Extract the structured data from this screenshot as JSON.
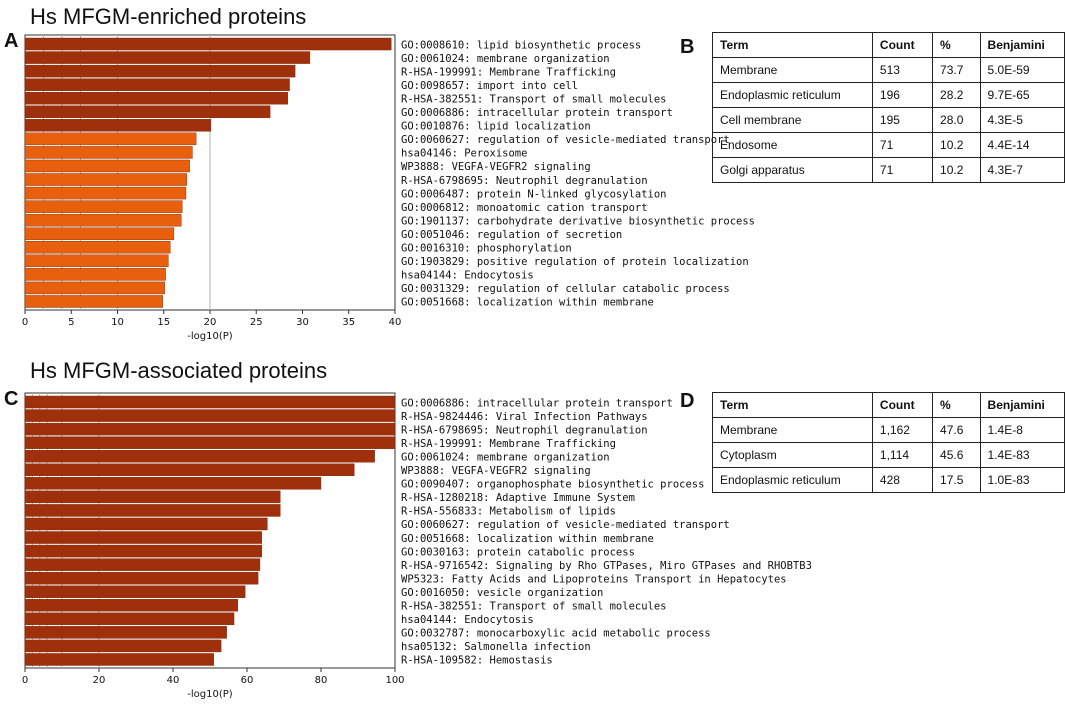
{
  "panels": {
    "a": {
      "letter": "A",
      "title": "Hs MFGM-enriched proteins"
    },
    "b": {
      "letter": "B"
    },
    "c": {
      "letter": "C",
      "title": "Hs MFGM-associated proteins"
    },
    "d": {
      "letter": "D"
    }
  },
  "chart_data": [
    {
      "type": "bar",
      "orientation": "horizontal",
      "title": "Hs MFGM-enriched proteins",
      "xlabel": "-log10(P)",
      "xlim": [
        0,
        40
      ],
      "xticks": [
        0,
        5,
        10,
        15,
        20,
        25,
        30,
        35,
        40
      ],
      "gridlines": [
        2,
        4,
        6,
        10,
        20
      ],
      "categories": [
        "GO:0008610: lipid biosynthetic process",
        "GO:0061024: membrane organization",
        "R-HSA-199991: Membrane Trafficking",
        "GO:0098657: import into cell",
        "R-HSA-382551: Transport of small molecules",
        "GO:0006886: intracellular protein transport",
        "GO:0010876: lipid localization",
        "GO:0060627: regulation of vesicle-mediated transport",
        "hsa04146: Peroxisome",
        "WP3888: VEGFA-VEGFR2 signaling",
        "R-HSA-6798695: Neutrophil degranulation",
        "GO:0006487: protein N-linked glycosylation",
        "GO:0006812: monoatomic cation transport",
        "GO:1901137: carbohydrate derivative biosynthetic process",
        "GO:0051046: regulation of secretion",
        "GO:0016310: phosphorylation",
        "GO:1903829: positive regulation of protein localization",
        "hsa04144: Endocytosis",
        "GO:0031329: regulation of cellular catabolic process",
        "GO:0051668: localization within membrane"
      ],
      "values": [
        39.6,
        30.8,
        29.2,
        28.6,
        28.4,
        26.5,
        20.1,
        18.5,
        18.1,
        17.8,
        17.5,
        17.4,
        17.0,
        16.9,
        16.1,
        15.7,
        15.5,
        15.2,
        15.1,
        14.9
      ],
      "colors": [
        "#a0300c",
        "#a0300c",
        "#a0300c",
        "#a0300c",
        "#a0300c",
        "#a0300c",
        "#a0300c",
        "#e8600e",
        "#e8600e",
        "#e8600e",
        "#e8600e",
        "#e8600e",
        "#e8600e",
        "#e8600e",
        "#e8600e",
        "#e8600e",
        "#e8600e",
        "#e8600e",
        "#e8600e",
        "#e8600e"
      ]
    },
    {
      "type": "bar",
      "orientation": "horizontal",
      "title": "Hs MFGM-associated proteins",
      "xlabel": "-log10(P)",
      "xlim": [
        0,
        100
      ],
      "xticks": [
        0,
        20,
        40,
        60,
        80,
        100
      ],
      "gridlines": [
        2,
        4,
        6,
        10,
        20
      ],
      "categories": [
        "GO:0006886: intracellular protein transport",
        "R-HSA-9824446: Viral Infection Pathways",
        "R-HSA-6798695: Neutrophil degranulation",
        "R-HSA-199991: Membrane Trafficking",
        "GO:0061024: membrane organization",
        "WP3888: VEGFA-VEGFR2 signaling",
        "GO:0090407: organophosphate biosynthetic process",
        "R-HSA-1280218: Adaptive Immune System",
        "R-HSA-556833: Metabolism of lipids",
        "GO:0060627: regulation of vesicle-mediated transport",
        "GO:0051668: localization within membrane",
        "GO:0030163: protein catabolic process",
        "R-HSA-9716542: Signaling by Rho GTPases, Miro GTPases and RHOBTB3",
        "WP5323: Fatty Acids and Lipoproteins Transport in Hepatocytes",
        "GO:0016050: vesicle organization",
        "R-HSA-382551: Transport of small molecules",
        "hsa04144: Endocytosis",
        "GO:0032787: monocarboxylic acid metabolic process",
        "hsa05132: Salmonella infection",
        "R-HSA-109582: Hemostasis"
      ],
      "values": [
        100,
        100,
        100,
        100,
        94.5,
        89,
        80,
        69,
        69,
        65.5,
        64,
        64,
        63.5,
        63,
        59.5,
        57.5,
        56.5,
        54.5,
        53,
        51
      ],
      "colors": [
        "#a0300c",
        "#a0300c",
        "#a0300c",
        "#a0300c",
        "#a0300c",
        "#a0300c",
        "#a0300c",
        "#a0300c",
        "#a0300c",
        "#a0300c",
        "#a0300c",
        "#a0300c",
        "#a0300c",
        "#a0300c",
        "#a0300c",
        "#a0300c",
        "#a0300c",
        "#a0300c",
        "#a0300c",
        "#a0300c"
      ]
    }
  ],
  "tables": {
    "b": {
      "headers": [
        "Term",
        "Count",
        "%",
        "Benjamini"
      ],
      "rows": [
        [
          "Membrane",
          "513",
          "73.7",
          "5.0E-59"
        ],
        [
          "Endoplasmic reticulum",
          "196",
          "28.2",
          "9.7E-65"
        ],
        [
          "Cell membrane",
          "195",
          "28.0",
          "4.3E-5"
        ],
        [
          "Endosome",
          "71",
          "10.2",
          "4.4E-14"
        ],
        [
          "Golgi apparatus",
          "71",
          "10.2",
          "4.3E-7"
        ]
      ]
    },
    "d": {
      "headers": [
        "Term",
        "Count",
        "%",
        "Benjamini"
      ],
      "rows": [
        [
          "Membrane",
          "1,162",
          "47.6",
          "1.4E-8"
        ],
        [
          "Cytoplasm",
          "1,114",
          "45.6",
          "1.4E-83"
        ],
        [
          "Endoplasmic reticulum",
          "428",
          "17.5",
          "1.0E-83"
        ]
      ]
    }
  }
}
